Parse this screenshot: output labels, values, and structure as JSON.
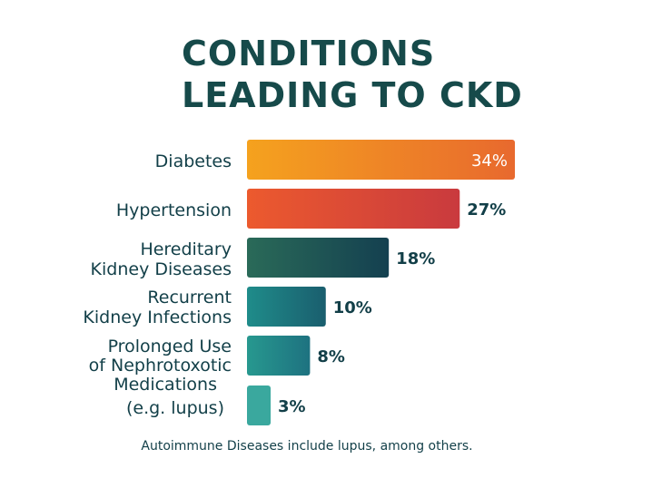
{
  "title": {
    "line1": "CONDITIONS",
    "line2": "LEADING TO CKD"
  },
  "footnote": "Autoimmune Diseases include lupus, among others.",
  "chart_data": {
    "type": "bar",
    "orientation": "horizontal",
    "title": "CONDITIONS LEADING TO CKD",
    "categories": [
      [
        "Diabetes"
      ],
      [
        "Hypertension"
      ],
      [
        "Hereditary",
        "Kidney Diseases"
      ],
      [
        "Recurrent",
        "Kidney Infections"
      ],
      [
        "Prolonged Use",
        "of Nephrotoxotic",
        "Medications"
      ],
      [
        "(e.g. lupus)"
      ]
    ],
    "values": [
      34,
      27,
      18,
      10,
      8,
      3
    ],
    "value_labels": [
      "34%",
      "27%",
      "18%",
      "10%",
      "8%",
      "3%"
    ],
    "value_unit": "%",
    "xlim": [
      0,
      34
    ],
    "grid": false,
    "legend": "none",
    "colors": [
      [
        "#f5a21e",
        "#e8692e"
      ],
      [
        "#ec5a2e",
        "#c93a3e"
      ],
      [
        "#2a6a58",
        "#144050"
      ],
      [
        "#1f8c8a",
        "#1a5e6e"
      ],
      [
        "#27988f",
        "#1e7280"
      ],
      [
        "#3aa89e",
        "#3aa89e"
      ]
    ]
  }
}
